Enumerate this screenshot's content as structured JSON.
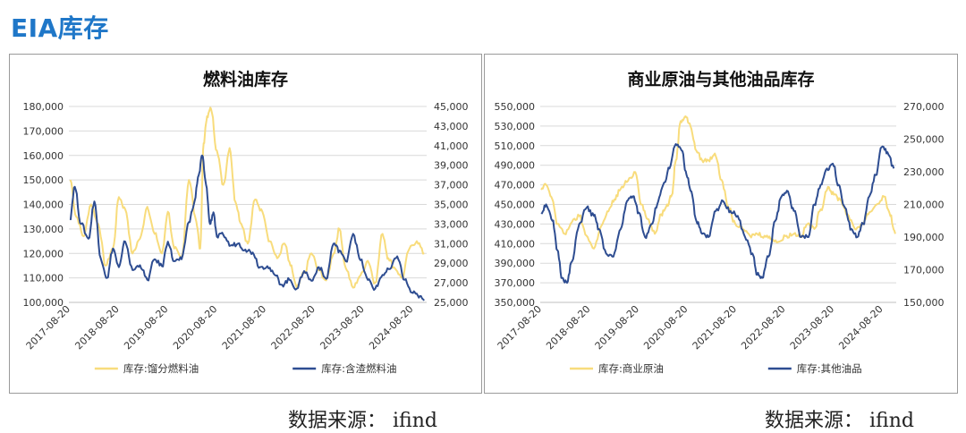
{
  "page": {
    "title": "EIA库存",
    "source_left": "数据来源： ifind",
    "source_right": "数据来源： ifind"
  },
  "colors": {
    "yellow": "#f8dc7c",
    "blue": "#2e4d91",
    "grid": "#d9d9d9"
  },
  "chart_data": [
    {
      "type": "line",
      "title": "燃料油库存",
      "x_ticks": [
        "2017-08-20",
        "2018-08-20",
        "2019-08-20",
        "2020-08-20",
        "2021-08-20",
        "2022-08-20",
        "2023-08-20",
        "2024-08-20"
      ],
      "y_left_ticks": [
        "100,000",
        "110,000",
        "120,000",
        "130,000",
        "140,000",
        "150,000",
        "160,000",
        "170,000",
        "180,000"
      ],
      "y_right_ticks": [
        "25,000",
        "27,000",
        "29,000",
        "31,000",
        "33,000",
        "35,000",
        "37,000",
        "39,000",
        "41,000",
        "43,000",
        "45,000"
      ],
      "ylim_left": [
        100000,
        180000
      ],
      "ylim_right": [
        25000,
        45000
      ],
      "x_range": [
        2017.6,
        2024.9
      ],
      "legend_position": "bottom",
      "series": [
        {
          "name": "库存:馏分燃料油",
          "axis": "left",
          "color": "#f8dc7c",
          "x": [
            2017.63,
            2017.75,
            2017.9,
            2018.05,
            2018.2,
            2018.35,
            2018.5,
            2018.62,
            2018.75,
            2018.9,
            2019.05,
            2019.2,
            2019.35,
            2019.5,
            2019.62,
            2019.75,
            2019.9,
            2020.05,
            2020.2,
            2020.28,
            2020.35,
            2020.42,
            2020.5,
            2020.62,
            2020.75,
            2020.88,
            2021.0,
            2021.12,
            2021.25,
            2021.4,
            2021.55,
            2021.7,
            2021.85,
            2022.0,
            2022.12,
            2022.25,
            2022.4,
            2022.55,
            2022.7,
            2022.85,
            2023.0,
            2023.12,
            2023.25,
            2023.4,
            2023.55,
            2023.7,
            2023.85,
            2024.0,
            2024.12,
            2024.25,
            2024.4,
            2024.55,
            2024.7,
            2024.85
          ],
          "y": [
            150000,
            135000,
            127000,
            140000,
            132000,
            115000,
            122000,
            143000,
            138000,
            120000,
            126000,
            139000,
            128000,
            120000,
            137000,
            122000,
            118000,
            150000,
            133000,
            122000,
            165000,
            176000,
            179000,
            162000,
            148000,
            163000,
            141000,
            132000,
            124000,
            142000,
            137000,
            125000,
            118000,
            124000,
            115000,
            106000,
            112000,
            120000,
            113000,
            109000,
            120000,
            130000,
            114000,
            106000,
            111000,
            117000,
            108000,
            128000,
            118000,
            114000,
            110000,
            122000,
            125000,
            120000
          ]
        },
        {
          "name": "库存:含渣燃料油",
          "axis": "right",
          "color": "#2e4d91",
          "x": [
            2017.62,
            2017.72,
            2017.85,
            2018.0,
            2018.12,
            2018.25,
            2018.38,
            2018.5,
            2018.62,
            2018.75,
            2018.9,
            2019.05,
            2019.2,
            2019.35,
            2019.5,
            2019.62,
            2019.75,
            2019.9,
            2020.05,
            2020.15,
            2020.25,
            2020.32,
            2020.4,
            2020.48,
            2020.55,
            2020.62,
            2020.75,
            2020.9,
            2021.05,
            2021.2,
            2021.35,
            2021.5,
            2021.65,
            2021.8,
            2021.95,
            2022.1,
            2022.25,
            2022.4,
            2022.55,
            2022.7,
            2022.85,
            2023.0,
            2023.12,
            2023.25,
            2023.4,
            2023.55,
            2023.7,
            2023.85,
            2024.0,
            2024.15,
            2024.3,
            2024.45,
            2024.6,
            2024.72,
            2024.85
          ],
          "y": [
            33500,
            36800,
            33000,
            31500,
            35300,
            29500,
            27500,
            30500,
            28600,
            31200,
            28300,
            28800,
            27300,
            29400,
            28700,
            31200,
            29200,
            29400,
            33200,
            35000,
            38000,
            40000,
            37000,
            33000,
            34200,
            31700,
            31900,
            30800,
            31000,
            30400,
            30100,
            28600,
            28700,
            27800,
            26800,
            27300,
            26400,
            28200,
            27200,
            28600,
            27400,
            31000,
            30300,
            29200,
            32000,
            29300,
            27300,
            26400,
            27800,
            28400,
            29700,
            27300,
            26000,
            25700,
            25200
          ]
        }
      ]
    },
    {
      "type": "line",
      "title": "商业原油与其他油品库存",
      "x_ticks": [
        "2017-08-20",
        "2018-08-20",
        "2019-08-20",
        "2020-08-20",
        "2021-08-20",
        "2022-08-20",
        "2023-08-20",
        "2024-08-20"
      ],
      "y_left_ticks": [
        "350,000",
        "370,000",
        "390,000",
        "410,000",
        "430,000",
        "450,000",
        "470,000",
        "490,000",
        "510,000",
        "530,000",
        "550,000"
      ],
      "y_right_ticks": [
        "150,000",
        "170,000",
        "190,000",
        "210,000",
        "230,000",
        "250,000",
        "270,000"
      ],
      "ylim_left": [
        350000,
        550000
      ],
      "ylim_right": [
        150000,
        270000
      ],
      "x_range": [
        2017.6,
        2024.9
      ],
      "legend_position": "bottom",
      "series": [
        {
          "name": "库存:商业原油",
          "axis": "left",
          "color": "#f8dc7c",
          "x": [
            2017.62,
            2017.72,
            2017.85,
            2017.95,
            2018.1,
            2018.25,
            2018.4,
            2018.55,
            2018.7,
            2018.85,
            2019.0,
            2019.12,
            2019.25,
            2019.4,
            2019.55,
            2019.68,
            2019.8,
            2019.95,
            2020.08,
            2020.2,
            2020.3,
            2020.38,
            2020.48,
            2020.58,
            2020.68,
            2020.8,
            2020.92,
            2021.05,
            2021.18,
            2021.32,
            2021.45,
            2021.6,
            2021.75,
            2021.9,
            2022.05,
            2022.2,
            2022.35,
            2022.5,
            2022.65,
            2022.8,
            2022.95,
            2023.08,
            2023.22,
            2023.35,
            2023.5,
            2023.62,
            2023.75,
            2023.9,
            2024.05,
            2024.2,
            2024.35,
            2024.5,
            2024.65,
            2024.78,
            2024.88
          ],
          "y": [
            465000,
            470000,
            455000,
            430000,
            420000,
            432000,
            438000,
            418000,
            405000,
            428000,
            443000,
            455000,
            466000,
            474000,
            483000,
            450000,
            435000,
            420000,
            440000,
            450000,
            460000,
            495000,
            535000,
            540000,
            530000,
            505000,
            495000,
            495000,
            502000,
            475000,
            448000,
            430000,
            425000,
            418000,
            420000,
            418000,
            415000,
            412000,
            418000,
            420000,
            418000,
            430000,
            425000,
            445000,
            468000,
            460000,
            455000,
            440000,
            425000,
            430000,
            442000,
            450000,
            458000,
            438000,
            420000
          ]
        },
        {
          "name": "库存:其他油品",
          "axis": "right",
          "color": "#2e4d91",
          "x": [
            2017.62,
            2017.72,
            2017.85,
            2017.95,
            2018.05,
            2018.15,
            2018.25,
            2018.4,
            2018.55,
            2018.7,
            2018.8,
            2018.95,
            2019.1,
            2019.25,
            2019.38,
            2019.5,
            2019.62,
            2019.75,
            2019.88,
            2020.0,
            2020.12,
            2020.25,
            2020.38,
            2020.5,
            2020.6,
            2020.7,
            2020.8,
            2020.92,
            2021.05,
            2021.2,
            2021.35,
            2021.5,
            2021.65,
            2021.8,
            2021.95,
            2022.05,
            2022.15,
            2022.28,
            2022.42,
            2022.55,
            2022.68,
            2022.8,
            2022.95,
            2023.1,
            2023.22,
            2023.35,
            2023.48,
            2023.6,
            2023.72,
            2023.85,
            2023.98,
            2024.1,
            2024.22,
            2024.35,
            2024.48,
            2024.6,
            2024.72,
            2024.85
          ],
          "y": [
            205000,
            210000,
            200000,
            182000,
            165000,
            162000,
            175000,
            198000,
            208000,
            203000,
            195000,
            180000,
            178000,
            195000,
            212000,
            215000,
            205000,
            190000,
            198000,
            210000,
            222000,
            232000,
            247000,
            243000,
            228000,
            218000,
            200000,
            192000,
            190000,
            206000,
            212000,
            206000,
            203000,
            190000,
            180000,
            167000,
            165000,
            178000,
            200000,
            215000,
            218000,
            206000,
            190000,
            190000,
            210000,
            222000,
            232000,
            235000,
            222000,
            208000,
            195000,
            190000,
            198000,
            215000,
            228000,
            245000,
            242000,
            232000
          ]
        }
      ]
    }
  ]
}
